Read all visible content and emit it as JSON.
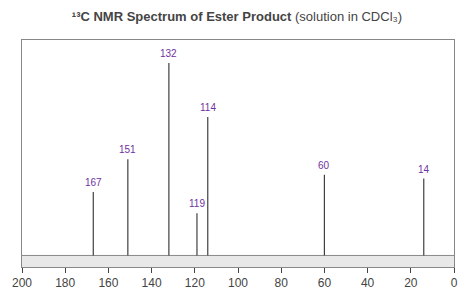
{
  "chart_data": {
    "type": "stem",
    "title": "¹³C NMR Spectrum of Ester Product",
    "subtitle": "(solution in CDCl₃)",
    "x": [
      167,
      151,
      132,
      119,
      114,
      60,
      14
    ],
    "values": [
      0.33,
      0.5,
      1.0,
      0.22,
      0.72,
      0.42,
      0.4
    ],
    "color": "#404040",
    "annotations": [
      {
        "x": 167,
        "text": "167",
        "color": "#7030A0"
      },
      {
        "x": 151,
        "text": "151",
        "color": "#7030A0"
      },
      {
        "x": 132,
        "text": "132",
        "color": "#7030A0"
      },
      {
        "x": 119,
        "text": "119",
        "color": "#7030A0"
      },
      {
        "x": 114,
        "text": "114",
        "color": "#7030A0"
      },
      {
        "x": 60,
        "text": "60",
        "color": "#7030A0"
      },
      {
        "x": 14,
        "text": "14",
        "color": "#7030A0"
      }
    ],
    "xlim": [
      200,
      0
    ],
    "xticks": [
      200,
      180,
      160,
      140,
      120,
      100,
      80,
      60,
      40,
      20,
      0
    ],
    "ylim": [
      -0.06,
      1.12
    ],
    "tick_labels": "x",
    "grid": false
  }
}
